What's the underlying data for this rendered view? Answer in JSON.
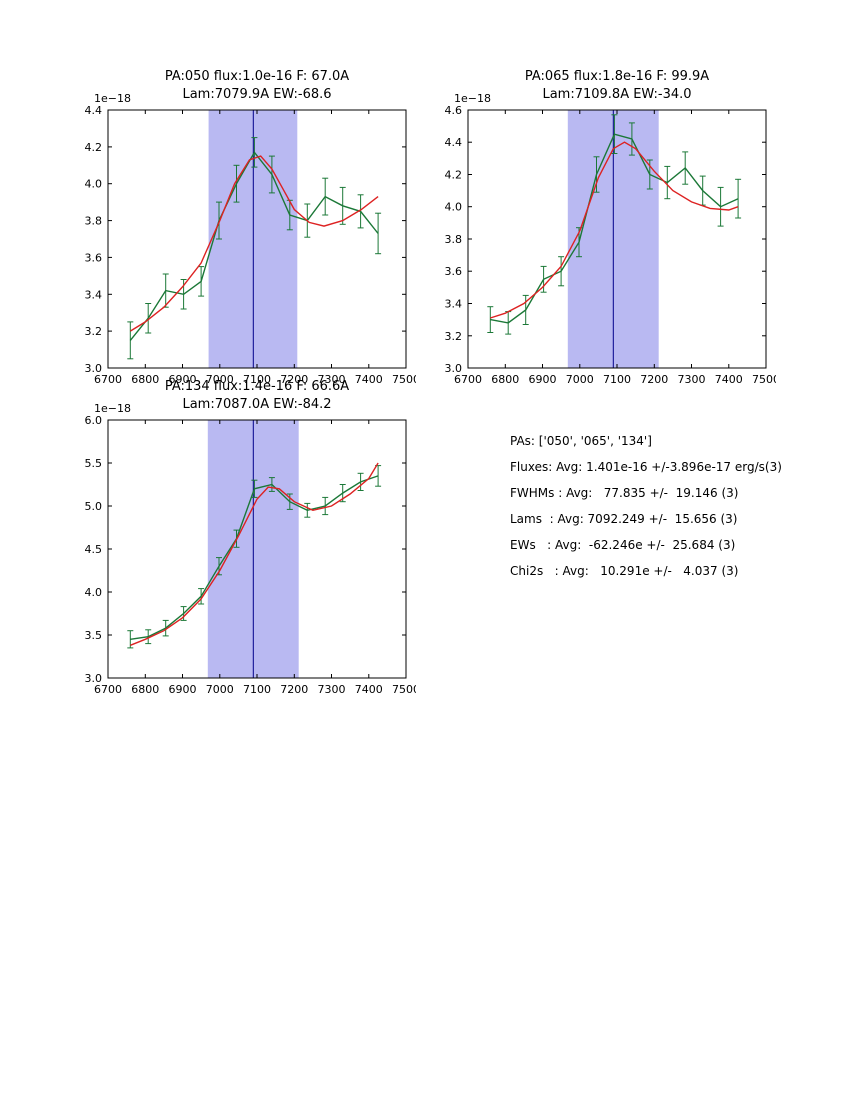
{
  "colors": {
    "band": "#b9b9f2",
    "vline": "#00008b",
    "data": "#1b7837",
    "fit": "#dd2222",
    "axis": "#000000"
  },
  "stats_panel": {
    "lines": [
      "PAs: ['050', '065', '134']",
      "Fluxes: Avg: 1.401e-16 +/-3.896e-17 erg/s(3)",
      "FWHMs : Avg:   77.835 +/-  19.146 (3)",
      "Lams  : Avg: 7092.249 +/-  15.656 (3)",
      "EWs   : Avg:  -62.246e +/-  25.684 (3)",
      "Chi2s   : Avg:   10.291e +/-   4.037 (3)"
    ]
  },
  "chart_data": [
    {
      "type": "line",
      "title_line1": "PA:050 flux:1.0e-16 F: 67.0A",
      "title_line2": "Lam:7079.9A EW:-68.6",
      "offset_label": "1e−18",
      "xlabel": "",
      "ylabel": "",
      "xlim": [
        6700,
        7500
      ],
      "ylim": [
        3.0,
        4.4
      ],
      "xticks": [
        6700,
        6800,
        6900,
        7000,
        7100,
        7200,
        7300,
        7400,
        7500
      ],
      "yticks": [
        3.0,
        3.2,
        3.4,
        3.6,
        3.8,
        4.0,
        4.2,
        4.4
      ],
      "band": [
        6970,
        7208
      ],
      "vline": 7090,
      "series": [
        {
          "name": "data",
          "x": [
            6760,
            6808,
            6855,
            6903,
            6950,
            6998,
            7045,
            7093,
            7140,
            7188,
            7235,
            7283,
            7330,
            7378,
            7425
          ],
          "y": [
            3.15,
            3.27,
            3.42,
            3.4,
            3.47,
            3.8,
            4.0,
            4.17,
            4.05,
            3.83,
            3.8,
            3.93,
            3.88,
            3.85,
            3.73
          ],
          "yerr": [
            0.1,
            0.08,
            0.09,
            0.08,
            0.08,
            0.1,
            0.1,
            0.08,
            0.1,
            0.08,
            0.09,
            0.1,
            0.1,
            0.09,
            0.11
          ]
        },
        {
          "name": "fit",
          "x": [
            6760,
            6800,
            6850,
            6900,
            6950,
            7000,
            7040,
            7080,
            7110,
            7140,
            7170,
            7200,
            7240,
            7280,
            7330,
            7380,
            7425
          ],
          "y": [
            3.2,
            3.25,
            3.33,
            3.44,
            3.57,
            3.8,
            4.0,
            4.13,
            4.15,
            4.08,
            3.97,
            3.86,
            3.79,
            3.77,
            3.8,
            3.86,
            3.93
          ]
        }
      ]
    },
    {
      "type": "line",
      "title_line1": "PA:065 flux:1.8e-16 F: 99.9A",
      "title_line2": "Lam:7109.8A EW:-34.0",
      "offset_label": "1e−18",
      "xlabel": "",
      "ylabel": "",
      "xlim": [
        6700,
        7500
      ],
      "ylim": [
        3.0,
        4.6
      ],
      "xticks": [
        6700,
        6800,
        6900,
        7000,
        7100,
        7200,
        7300,
        7400,
        7500
      ],
      "yticks": [
        3.0,
        3.2,
        3.4,
        3.6,
        3.8,
        4.0,
        4.2,
        4.4,
        4.6
      ],
      "band": [
        6968,
        7212
      ],
      "vline": 7090,
      "series": [
        {
          "name": "data",
          "x": [
            6760,
            6808,
            6855,
            6903,
            6950,
            6998,
            7045,
            7093,
            7140,
            7188,
            7235,
            7283,
            7330,
            7378,
            7425
          ],
          "y": [
            3.3,
            3.28,
            3.36,
            3.55,
            3.6,
            3.78,
            4.2,
            4.45,
            4.42,
            4.2,
            4.15,
            4.24,
            4.1,
            4.0,
            4.05
          ],
          "yerr": [
            0.08,
            0.07,
            0.09,
            0.08,
            0.09,
            0.09,
            0.11,
            0.12,
            0.1,
            0.09,
            0.1,
            0.1,
            0.09,
            0.12,
            0.12
          ]
        },
        {
          "name": "fit",
          "x": [
            6760,
            6800,
            6850,
            6900,
            6950,
            7000,
            7050,
            7090,
            7120,
            7150,
            7200,
            7250,
            7300,
            7350,
            7400,
            7425
          ],
          "y": [
            3.31,
            3.34,
            3.4,
            3.5,
            3.63,
            3.85,
            4.18,
            4.36,
            4.4,
            4.36,
            4.22,
            4.1,
            4.03,
            3.99,
            3.98,
            4.0
          ]
        }
      ]
    },
    {
      "type": "line",
      "title_line1": "PA:134 flux:1.4e-16 F: 66.6A",
      "title_line2": "Lam:7087.0A EW:-84.2",
      "offset_label": "1e−18",
      "xlabel": "",
      "ylabel": "",
      "xlim": [
        6700,
        7500
      ],
      "ylim": [
        3.0,
        6.0
      ],
      "xticks": [
        6700,
        6800,
        6900,
        7000,
        7100,
        7200,
        7300,
        7400,
        7500
      ],
      "yticks": [
        3.0,
        3.5,
        4.0,
        4.5,
        5.0,
        5.5,
        6.0
      ],
      "band": [
        6968,
        7212
      ],
      "vline": 7090,
      "series": [
        {
          "name": "data",
          "x": [
            6760,
            6808,
            6855,
            6903,
            6950,
            6998,
            7045,
            7093,
            7140,
            7188,
            7235,
            7283,
            7330,
            7378,
            7425
          ],
          "y": [
            3.45,
            3.48,
            3.58,
            3.75,
            3.95,
            4.3,
            4.62,
            5.2,
            5.25,
            5.05,
            4.95,
            5.0,
            5.15,
            5.28,
            5.35
          ],
          "yerr": [
            0.1,
            0.08,
            0.09,
            0.08,
            0.09,
            0.1,
            0.1,
            0.1,
            0.08,
            0.09,
            0.08,
            0.1,
            0.1,
            0.1,
            0.12
          ]
        },
        {
          "name": "fit",
          "x": [
            6760,
            6800,
            6850,
            6900,
            6950,
            7000,
            7050,
            7100,
            7130,
            7160,
            7200,
            7250,
            7300,
            7350,
            7400,
            7425
          ],
          "y": [
            3.38,
            3.45,
            3.55,
            3.7,
            3.92,
            4.25,
            4.65,
            5.08,
            5.22,
            5.2,
            5.05,
            4.95,
            5.0,
            5.14,
            5.32,
            5.5
          ]
        }
      ]
    }
  ]
}
